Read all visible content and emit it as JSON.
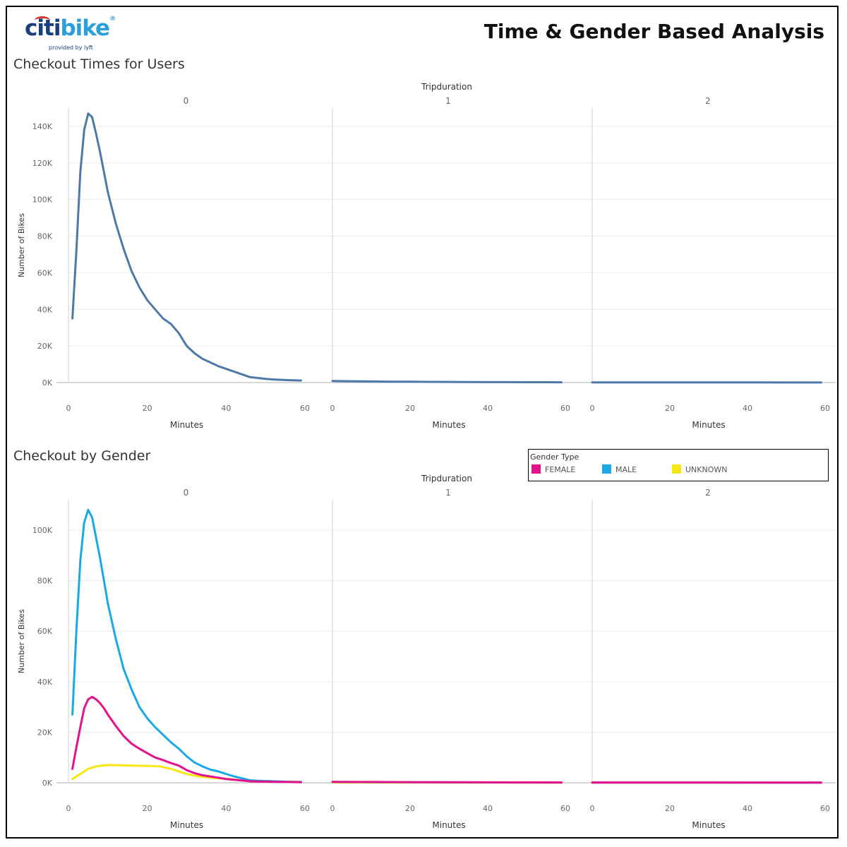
{
  "header": {
    "logo_citi": "citi",
    "logo_bike": "bike",
    "logo_sub": "provided by lyft",
    "title": "Time & Gender Based Analysis"
  },
  "legend": {
    "title": "Gender Type",
    "items": [
      {
        "label": "FEMALE",
        "color": "#e5118c"
      },
      {
        "label": "MALE",
        "color": "#1ba8e6"
      },
      {
        "label": "UNKNOWN",
        "color": "#f6e611"
      }
    ]
  },
  "chart_data": [
    {
      "type": "line",
      "title": "Checkout Times for Users",
      "facet_label": "Tripduration",
      "facets": [
        "0",
        "1",
        "2"
      ],
      "xlabel": "Minutes",
      "ylabel": "Number of Bikes",
      "xlim": [
        0,
        60
      ],
      "ylim": [
        0,
        150000
      ],
      "x_ticks": [
        0,
        20,
        40,
        60
      ],
      "y_ticks": [
        0,
        20000,
        40000,
        60000,
        80000,
        100000,
        120000,
        140000
      ],
      "y_tick_labels": [
        "0K",
        "20K",
        "40K",
        "60K",
        "80K",
        "100K",
        "120K",
        "140K"
      ],
      "grid": true,
      "series": [
        {
          "color": "#4e79a7",
          "facet_values": [
            {
              "x": [
                1,
                2,
                3,
                4,
                5,
                6,
                7,
                8,
                9,
                10,
                12,
                14,
                16,
                18,
                20,
                22,
                24,
                26,
                28,
                30,
                32,
                34,
                36,
                38,
                40,
                42,
                44,
                46,
                48,
                50,
                52,
                54,
                56,
                58,
                59
              ],
              "y": [
                35000,
                72000,
                115000,
                138000,
                147000,
                145000,
                136000,
                126000,
                115000,
                104000,
                87000,
                73000,
                61000,
                52000,
                45000,
                40000,
                35000,
                32000,
                27000,
                20000,
                16000,
                13000,
                11000,
                9000,
                7500,
                6000,
                4500,
                3000,
                2500,
                2000,
                1700,
                1500,
                1300,
                1200,
                1100
              ]
            },
            {
              "x": [
                0,
                5,
                10,
                15,
                20,
                25,
                30,
                35,
                40,
                45,
                50,
                55,
                59
              ],
              "y": [
                900,
                750,
                600,
                500,
                450,
                400,
                350,
                300,
                250,
                220,
                200,
                180,
                150
              ]
            },
            {
              "x": [
                0,
                10,
                20,
                30,
                40,
                50,
                59
              ],
              "y": [
                100,
                90,
                80,
                70,
                60,
                50,
                40
              ]
            }
          ]
        }
      ]
    },
    {
      "type": "line",
      "title": "Checkout by Gender",
      "facet_label": "Tripduration",
      "facets": [
        "0",
        "1",
        "2"
      ],
      "xlabel": "Minutes",
      "ylabel": "Number of Bikes",
      "xlim": [
        0,
        60
      ],
      "ylim": [
        0,
        112000
      ],
      "x_ticks": [
        0,
        20,
        40,
        60
      ],
      "y_ticks": [
        0,
        20000,
        40000,
        60000,
        80000,
        100000
      ],
      "y_tick_labels": [
        "0K",
        "20K",
        "40K",
        "60K",
        "80K",
        "100K"
      ],
      "grid": true,
      "series": [
        {
          "name": "UNKNOWN",
          "color": "#f6e611",
          "facet_values": [
            {
              "x": [
                1,
                3,
                5,
                7,
                10,
                13,
                16,
                20,
                23,
                26,
                28,
                30,
                33,
                36,
                40,
                44,
                48,
                52,
                56,
                59
              ],
              "y": [
                1500,
                3500,
                5500,
                6500,
                7000,
                6900,
                6800,
                6700,
                6500,
                5500,
                4500,
                3500,
                2500,
                2000,
                1500,
                1000,
                700,
                500,
                400,
                300
              ]
            },
            {
              "x": [
                0,
                30,
                59
              ],
              "y": [
                100,
                80,
                60
              ]
            },
            {
              "x": [
                0,
                30,
                59
              ],
              "y": [
                50,
                40,
                30
              ]
            }
          ]
        },
        {
          "name": "MALE",
          "color": "#1ba8e6",
          "facet_values": [
            {
              "x": [
                1,
                2,
                3,
                4,
                5,
                6,
                7,
                8,
                9,
                10,
                12,
                14,
                16,
                18,
                20,
                22,
                24,
                26,
                28,
                30,
                32,
                34,
                36,
                38,
                40,
                42,
                44,
                46,
                48,
                50,
                52,
                54,
                56,
                58,
                59
              ],
              "y": [
                27000,
                60000,
                88000,
                103000,
                108000,
                105000,
                97000,
                89000,
                80000,
                71000,
                57000,
                45000,
                37000,
                30000,
                25500,
                22000,
                19000,
                16000,
                13500,
                10500,
                8000,
                6500,
                5200,
                4500,
                3500,
                2500,
                1800,
                1000,
                800,
                700,
                600,
                500,
                400,
                350,
                300
              ]
            },
            {
              "x": [
                0,
                10,
                20,
                30,
                40,
                50,
                59
              ],
              "y": [
                300,
                260,
                220,
                180,
                150,
                120,
                100
              ]
            },
            {
              "x": [
                0,
                30,
                59
              ],
              "y": [
                80,
                60,
                40
              ]
            }
          ]
        },
        {
          "name": "FEMALE",
          "color": "#e5118c",
          "facet_values": [
            {
              "x": [
                1,
                2,
                3,
                4,
                5,
                6,
                7,
                8,
                9,
                10,
                12,
                14,
                16,
                18,
                20,
                22,
                24,
                26,
                28,
                30,
                32,
                34,
                36,
                38,
                40,
                42,
                44,
                46,
                48,
                50,
                52,
                54,
                56,
                58,
                59
              ],
              "y": [
                5500,
                14000,
                22000,
                29500,
                33000,
                34000,
                33000,
                31500,
                29500,
                27000,
                22500,
                18500,
                15500,
                13500,
                11700,
                10000,
                9000,
                7800,
                6800,
                5000,
                3800,
                3000,
                2500,
                2000,
                1500,
                1200,
                900,
                600,
                500,
                450,
                400,
                350,
                300,
                250,
                200
              ]
            },
            {
              "x": [
                0,
                10,
                20,
                30,
                40,
                50,
                59
              ],
              "y": [
                350,
                300,
                250,
                200,
                170,
                140,
                120
              ]
            },
            {
              "x": [
                0,
                30,
                59
              ],
              "y": [
                120,
                100,
                80
              ]
            }
          ]
        }
      ]
    }
  ]
}
